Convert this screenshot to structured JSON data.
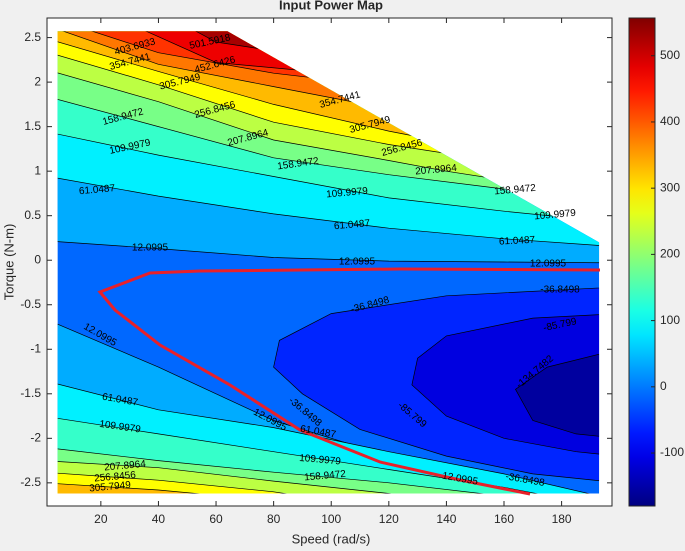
{
  "chart_data": {
    "type": "contour",
    "title": "Input Power Map",
    "x_label": "Speed (rad/s)",
    "y_label": "Torque (N-m)",
    "xlim": [
      1.3,
      197.5
    ],
    "ylim": [
      -2.76,
      2.72
    ],
    "xticks": [
      20,
      40,
      60,
      80,
      100,
      120,
      140,
      160,
      180
    ],
    "yticks": [
      -2.5,
      -2,
      -1.5,
      -1,
      -0.5,
      0,
      0.5,
      1,
      1.5,
      2,
      2.5
    ],
    "colorbar": {
      "lim": [
        -180,
        557
      ],
      "ticks": [
        -100,
        0,
        100,
        200,
        300,
        400,
        500
      ]
    },
    "levels": [
      -134.7482,
      -85.799,
      -36.8498,
      12.0995,
      61.0487,
      109.9979,
      158.9472,
      207.8964,
      256.8456,
      305.7949,
      354.7441,
      403.6933,
      452.6426,
      501.5918
    ]
  }
}
